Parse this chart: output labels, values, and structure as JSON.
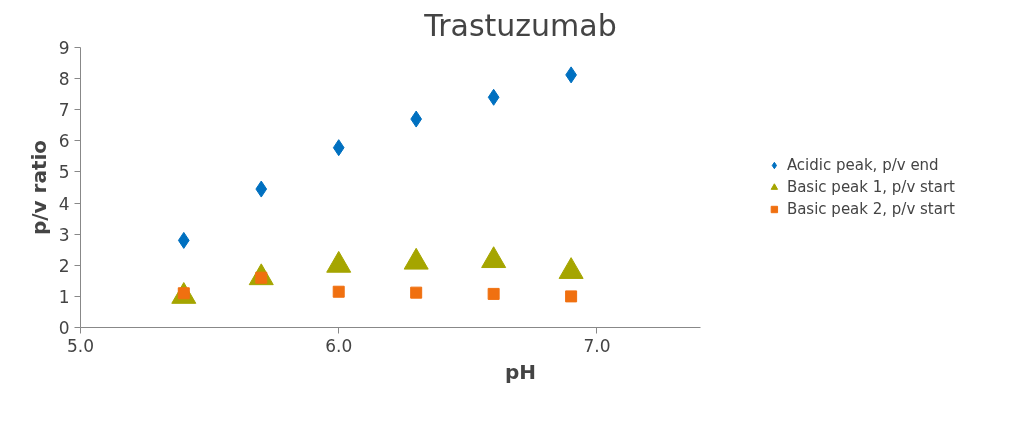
{
  "chart_data": {
    "type": "scatter",
    "title": "Trastuzumab",
    "xlabel": "pH",
    "ylabel": "p/v ratio",
    "x": [
      5.4,
      5.7,
      6.0,
      6.3,
      6.6,
      6.9
    ],
    "series": [
      {
        "name": "Acidic peak, p/v end",
        "color": "#0070c0",
        "marker": "diamond",
        "values": [
          2.8,
          4.45,
          5.78,
          6.7,
          7.4,
          8.12
        ]
      },
      {
        "name": "Basic peak 1, p/v start",
        "color": "#a5a500",
        "marker": "triangle",
        "values": [
          1.0,
          1.6,
          2.0,
          2.1,
          2.15,
          1.8
        ]
      },
      {
        "name": "Basic peak 2, p/v start",
        "color": "#f07010",
        "marker": "square",
        "values": [
          1.1,
          1.6,
          1.15,
          1.12,
          1.08,
          1.0
        ]
      }
    ],
    "xlim": [
      5.0,
      7.4
    ],
    "xticks": [
      {
        "value": 5,
        "label": "5.0"
      },
      {
        "value": 6,
        "label": "6.0"
      },
      {
        "value": 7,
        "label": "7.0"
      }
    ],
    "ylim": [
      0,
      9
    ],
    "yticks": [
      0,
      1,
      2,
      3,
      4,
      5,
      6,
      7,
      8,
      9
    ],
    "grid": false,
    "legend": "right"
  }
}
